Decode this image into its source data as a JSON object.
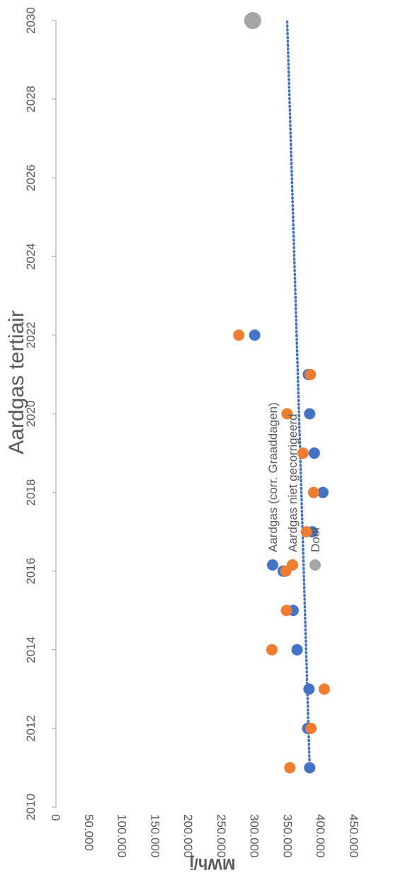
{
  "chart_data": {
    "type": "scatter",
    "title": "Aardgas tertiair",
    "ylabel": "MWh/j",
    "xlabel": "",
    "xlim": [
      2010,
      2030
    ],
    "ylim": [
      0,
      450000
    ],
    "x_ticks": [
      "2010",
      "2012",
      "2014",
      "2016",
      "2018",
      "2020",
      "2022",
      "2024",
      "2026",
      "2028",
      "2030"
    ],
    "y_ticks": [
      "0",
      "50.000",
      "100.000",
      "150.000",
      "200.000",
      "250.000",
      "300.000",
      "350.000",
      "400.000",
      "450.000"
    ],
    "orientation": "rotated 90° clockwise",
    "grid": false,
    "legend_position": "right",
    "series": [
      {
        "name": "Aardgas (corr. Graaddagen)",
        "color": "#4472C4",
        "x": [
          2011,
          2012,
          2013,
          2014,
          2015,
          2016,
          2017,
          2018,
          2019,
          2020,
          2021,
          2022
        ],
        "y": [
          383000,
          380000,
          382000,
          364000,
          358000,
          343000,
          387000,
          403000,
          390000,
          383000,
          381000,
          300000
        ]
      },
      {
        "name": "Aardgas niet gecorrigeerd",
        "color": "#ED7D31",
        "x": [
          2011,
          2012,
          2013,
          2014,
          2015,
          2016,
          2017,
          2018,
          2019,
          2020,
          2021,
          2022
        ],
        "y": [
          353000,
          385000,
          405000,
          326000,
          348000,
          347000,
          378000,
          389000,
          373000,
          349000,
          384000,
          276000
        ]
      },
      {
        "name": "Doel",
        "color": "#A5A5A5",
        "x": [
          2030
        ],
        "y": [
          297000
        ]
      }
    ],
    "trendline": {
      "series": "Aardgas (corr. Graaddagen)",
      "type": "linear",
      "style": "dotted",
      "color": "#4472C4",
      "x_start": 2011,
      "y_start": 383000,
      "x_end": 2030,
      "y_end": 349000
    }
  }
}
